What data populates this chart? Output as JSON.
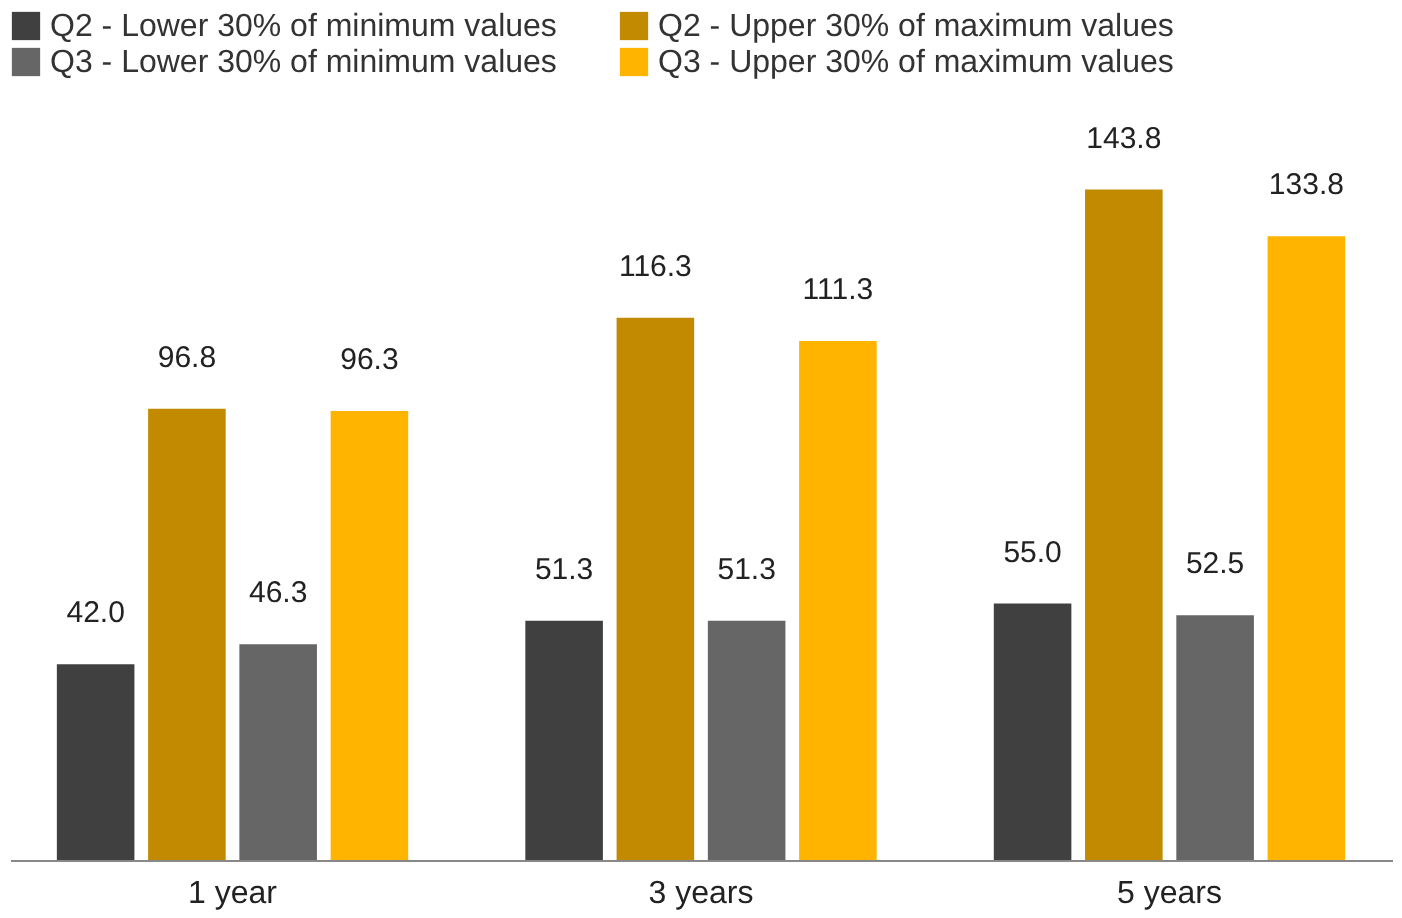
{
  "chart_data": {
    "type": "bar",
    "categories": [
      "1 year",
      "3 years",
      "5 years"
    ],
    "series": [
      {
        "name": "Q2 - Lower 30% of minimum values",
        "color": "#404040",
        "values": [
          42.0,
          51.3,
          55.0
        ],
        "value_labels": [
          "42.0",
          "51.3",
          "55.0"
        ]
      },
      {
        "name": "Q2 - Upper 30% of maximum values",
        "color": "#c28a00",
        "values": [
          96.8,
          116.3,
          143.8
        ],
        "value_labels": [
          "96.8",
          "116.3",
          "143.8"
        ]
      },
      {
        "name": "Q3 - Lower 30% of minimum values",
        "color": "#666666",
        "values": [
          46.3,
          51.3,
          52.5
        ],
        "value_labels": [
          "46.3",
          "51.3",
          "52.5"
        ]
      },
      {
        "name": "Q3 - Upper 30% of maximum values",
        "color": "#ffb400",
        "values": [
          96.3,
          111.3,
          133.8
        ],
        "value_labels": [
          "96.3",
          "111.3",
          "133.8"
        ]
      }
    ],
    "legend": "top"
  }
}
